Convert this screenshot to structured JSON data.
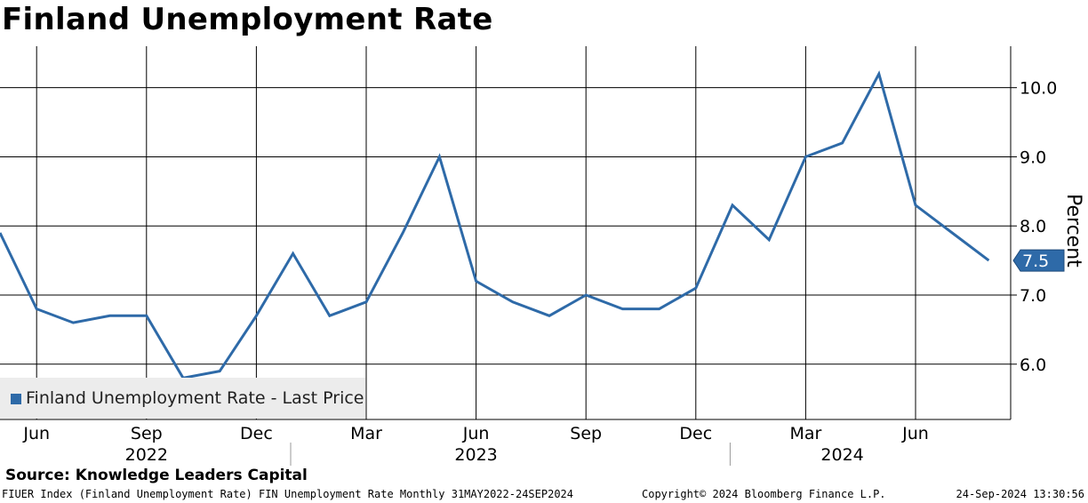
{
  "title": "Finland Unemployment Rate",
  "source": "Source: Knowledge Leaders Capital",
  "footer": {
    "left": "FIUER Index (Finland Unemployment Rate) FIN Unemployment Rate  Monthly 31MAY2022-24SEP2024",
    "middle": "Copyright© 2024 Bloomberg Finance L.P.",
    "right": "24-Sep-2024 13:30:56"
  },
  "legend": {
    "label": "Finland Unemployment Rate - Last Price",
    "color": "#2e6aa8"
  },
  "chart_data": {
    "type": "line",
    "title": "Finland Unemployment Rate",
    "ylabel": "Percent",
    "ylim": [
      5.2,
      10.6
    ],
    "yticks": [
      6.0,
      7.0,
      8.0,
      9.0,
      10.0
    ],
    "ytick_labels": [
      "6.0",
      "7.0",
      "8.0",
      "9.0",
      "10.0"
    ],
    "y_axis_side": "right",
    "grid": true,
    "legend_position": "bottom-left",
    "last_value_label": "7.5",
    "x_month_labels": [
      {
        "date": "2022-06",
        "label": "Jun"
      },
      {
        "date": "2022-09",
        "label": "Sep"
      },
      {
        "date": "2022-12",
        "label": "Dec"
      },
      {
        "date": "2023-03",
        "label": "Mar"
      },
      {
        "date": "2023-06",
        "label": "Jun"
      },
      {
        "date": "2023-09",
        "label": "Sep"
      },
      {
        "date": "2023-12",
        "label": "Dec"
      },
      {
        "date": "2024-03",
        "label": "Mar"
      },
      {
        "date": "2024-06",
        "label": "Jun"
      }
    ],
    "x_year_labels": [
      {
        "date": "2022-09",
        "label": "2022"
      },
      {
        "date": "2023-06",
        "label": "2023"
      },
      {
        "date": "2024-04",
        "label": "2024"
      }
    ],
    "x_range": [
      "2022-05",
      "2024-09"
    ],
    "series": [
      {
        "name": "Finland Unemployment Rate - Last Price",
        "color": "#2e6aa8",
        "x": [
          "2022-05",
          "2022-06",
          "2022-07",
          "2022-08",
          "2022-09",
          "2022-10",
          "2022-11",
          "2022-12",
          "2023-01",
          "2023-02",
          "2023-03",
          "2023-04",
          "2023-05",
          "2023-06",
          "2023-07",
          "2023-08",
          "2023-09",
          "2023-10",
          "2023-11",
          "2023-12",
          "2024-01",
          "2024-02",
          "2024-03",
          "2024-04",
          "2024-05",
          "2024-06",
          "2024-07",
          "2024-08"
        ],
        "values": [
          7.9,
          6.8,
          6.6,
          6.7,
          6.7,
          5.8,
          5.9,
          6.7,
          7.6,
          6.7,
          6.9,
          7.9,
          9.0,
          7.2,
          6.9,
          6.7,
          7.0,
          6.8,
          6.8,
          7.1,
          8.3,
          7.8,
          9.0,
          9.2,
          10.2,
          8.3,
          7.9,
          7.5
        ]
      }
    ]
  }
}
